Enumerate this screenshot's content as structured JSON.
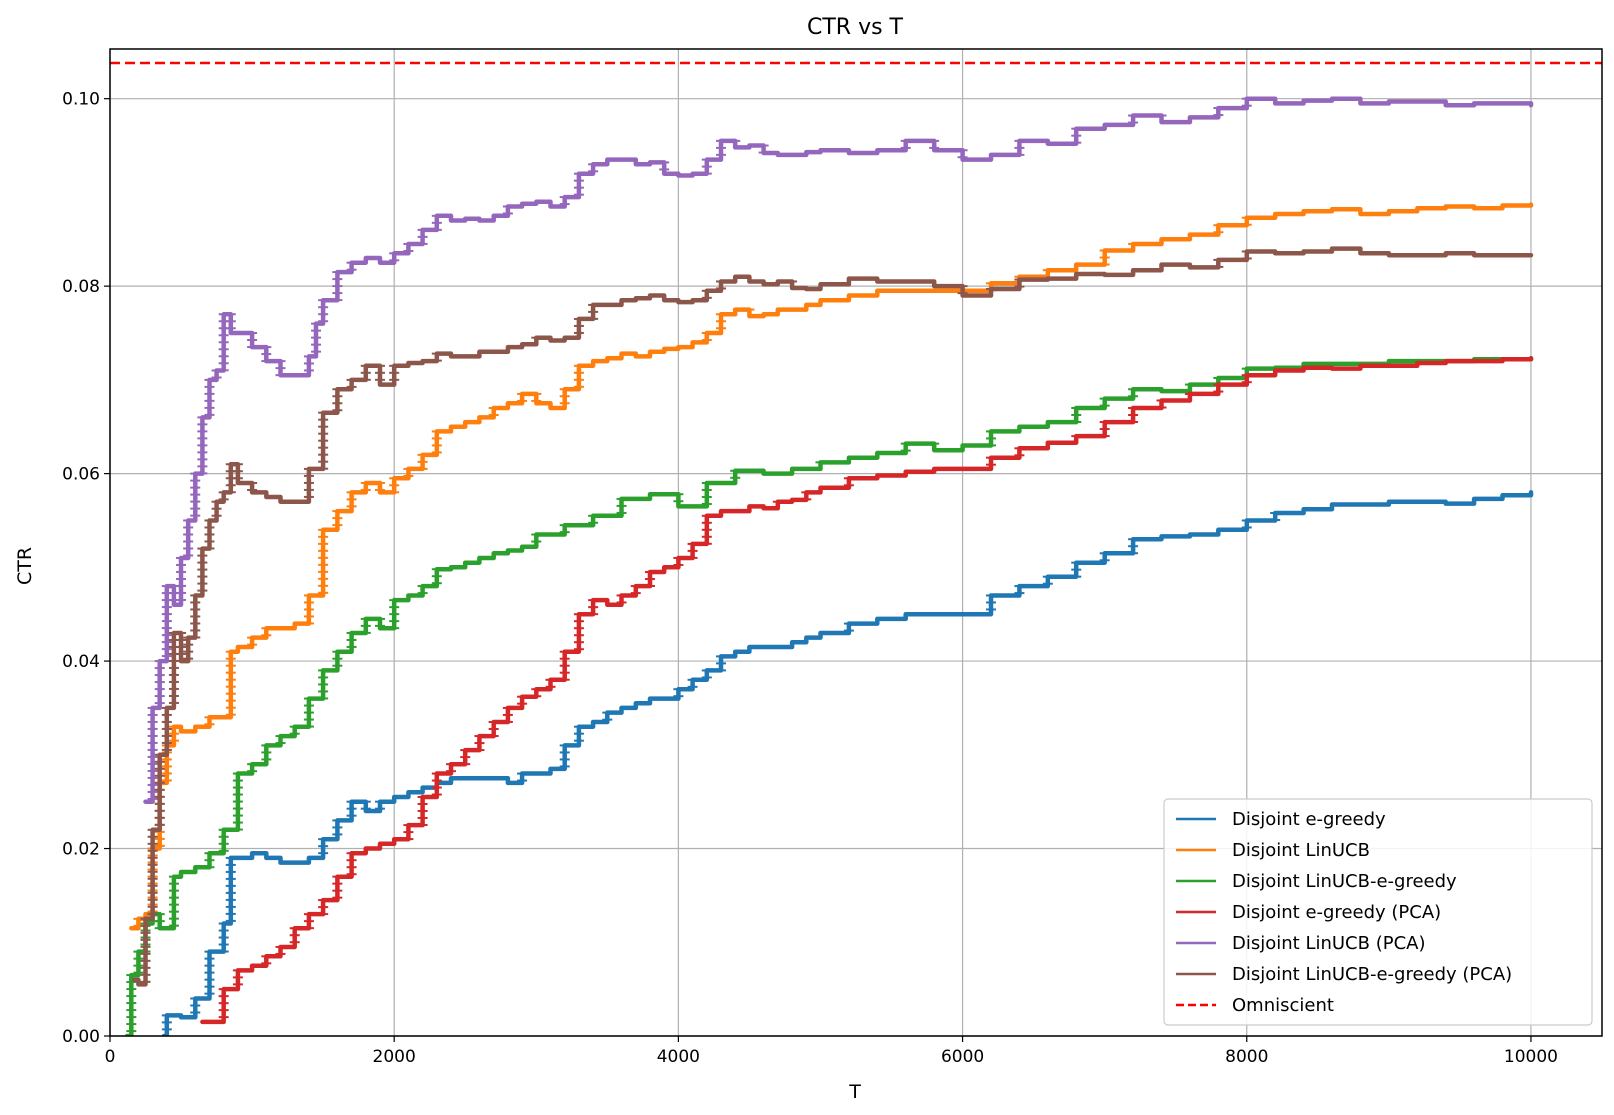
{
  "chart_data": {
    "type": "line",
    "title": "CTR vs T",
    "xlabel": "T",
    "ylabel": "CTR",
    "xlim": [
      0,
      10500
    ],
    "ylim": [
      0,
      0.1053
    ],
    "xticks": [
      0,
      2000,
      4000,
      6000,
      8000,
      10000
    ],
    "yticks": [
      0.0,
      0.02,
      0.04,
      0.06,
      0.08,
      0.1
    ],
    "xtick_labels": [
      "0",
      "2000",
      "4000",
      "6000",
      "8000",
      "10000"
    ],
    "ytick_labels": [
      "0.00",
      "0.02",
      "0.04",
      "0.06",
      "0.08",
      "0.10"
    ],
    "grid": true,
    "legend_position": "lower-right",
    "series": [
      {
        "name": "Disjoint e-greedy",
        "color": "#1f77b4",
        "dash": "solid",
        "x": [
          380,
          400,
          500,
          600,
          700,
          800,
          850,
          1000,
          1100,
          1200,
          1300,
          1400,
          1500,
          1600,
          1700,
          1800,
          1900,
          2000,
          2100,
          2200,
          2300,
          2400,
          2500,
          2600,
          2700,
          2800,
          2900,
          3000,
          3100,
          3200,
          3300,
          3400,
          3500,
          3600,
          3700,
          3800,
          3900,
          4000,
          4100,
          4200,
          4300,
          4400,
          4500,
          4600,
          4700,
          4800,
          4900,
          5000,
          5200,
          5400,
          5600,
          5800,
          6000,
          6200,
          6400,
          6600,
          6800,
          7000,
          7200,
          7400,
          7600,
          7800,
          8000,
          8200,
          8400,
          8600,
          8800,
          9000,
          9200,
          9400,
          9600,
          9800,
          10000
        ],
        "values": [
          0.0,
          0.0022,
          0.002,
          0.004,
          0.009,
          0.012,
          0.019,
          0.0195,
          0.019,
          0.0185,
          0.0185,
          0.019,
          0.021,
          0.023,
          0.025,
          0.024,
          0.025,
          0.0255,
          0.026,
          0.0265,
          0.027,
          0.0275,
          0.0275,
          0.0275,
          0.0275,
          0.027,
          0.028,
          0.028,
          0.0285,
          0.031,
          0.033,
          0.0335,
          0.0345,
          0.035,
          0.0355,
          0.036,
          0.036,
          0.037,
          0.038,
          0.039,
          0.0405,
          0.041,
          0.0415,
          0.0415,
          0.0415,
          0.042,
          0.0425,
          0.043,
          0.044,
          0.0445,
          0.045,
          0.045,
          0.045,
          0.047,
          0.048,
          0.049,
          0.0505,
          0.0515,
          0.053,
          0.0533,
          0.0535,
          0.054,
          0.055,
          0.0558,
          0.0562,
          0.0567,
          0.0567,
          0.057,
          0.057,
          0.0568,
          0.0573,
          0.0577,
          0.058
        ]
      },
      {
        "name": "Disjoint LinUCB",
        "color": "#ff7f0e",
        "dash": "solid",
        "x": [
          150,
          200,
          250,
          300,
          350,
          400,
          450,
          500,
          600,
          700,
          800,
          850,
          900,
          1000,
          1100,
          1200,
          1300,
          1400,
          1500,
          1600,
          1700,
          1800,
          1900,
          2000,
          2100,
          2200,
          2300,
          2400,
          2500,
          2600,
          2700,
          2800,
          2900,
          3000,
          3100,
          3200,
          3300,
          3400,
          3500,
          3600,
          3700,
          3800,
          3900,
          4000,
          4100,
          4200,
          4300,
          4400,
          4500,
          4600,
          4700,
          4800,
          4900,
          5000,
          5200,
          5400,
          5600,
          5800,
          6000,
          6200,
          6400,
          6600,
          6800,
          7000,
          7200,
          7400,
          7600,
          7800,
          8000,
          8200,
          8400,
          8600,
          8800,
          9000,
          9200,
          9400,
          9600,
          9800,
          10000
        ],
        "values": [
          0.0115,
          0.0125,
          0.013,
          0.02,
          0.027,
          0.031,
          0.033,
          0.0325,
          0.033,
          0.034,
          0.034,
          0.041,
          0.0415,
          0.0425,
          0.0435,
          0.0435,
          0.044,
          0.047,
          0.054,
          0.056,
          0.058,
          0.059,
          0.058,
          0.0595,
          0.0605,
          0.062,
          0.0645,
          0.065,
          0.0655,
          0.066,
          0.067,
          0.0675,
          0.0685,
          0.0675,
          0.067,
          0.069,
          0.0715,
          0.072,
          0.0723,
          0.0728,
          0.0725,
          0.073,
          0.0733,
          0.0735,
          0.074,
          0.075,
          0.077,
          0.0775,
          0.0768,
          0.077,
          0.0775,
          0.0775,
          0.078,
          0.0785,
          0.079,
          0.0795,
          0.0795,
          0.0795,
          0.0795,
          0.0803,
          0.081,
          0.0817,
          0.0823,
          0.0838,
          0.0845,
          0.085,
          0.0855,
          0.0865,
          0.0873,
          0.0877,
          0.088,
          0.0882,
          0.0877,
          0.088,
          0.0883,
          0.0885,
          0.0883,
          0.0886,
          0.0887
        ]
      },
      {
        "name": "Disjoint LinUCB-e-greedy",
        "color": "#2ca02c",
        "dash": "solid",
        "x": [
          120,
          150,
          200,
          250,
          300,
          350,
          400,
          450,
          500,
          600,
          700,
          800,
          900,
          1000,
          1100,
          1200,
          1300,
          1400,
          1500,
          1600,
          1700,
          1800,
          1900,
          2000,
          2100,
          2200,
          2300,
          2400,
          2500,
          2600,
          2700,
          2800,
          2900,
          3000,
          3200,
          3400,
          3600,
          3800,
          4000,
          4200,
          4400,
          4600,
          4800,
          5000,
          5200,
          5400,
          5600,
          5800,
          6000,
          6200,
          6400,
          6600,
          6800,
          7000,
          7200,
          7400,
          7600,
          7800,
          8000,
          8200,
          8400,
          8600,
          8800,
          9000,
          9200,
          9400,
          9600,
          9800,
          10000
        ],
        "values": [
          0.0,
          0.0065,
          0.009,
          0.012,
          0.013,
          0.0115,
          0.0115,
          0.017,
          0.0175,
          0.018,
          0.0195,
          0.022,
          0.028,
          0.029,
          0.031,
          0.032,
          0.033,
          0.036,
          0.039,
          0.041,
          0.043,
          0.0445,
          0.0435,
          0.0465,
          0.047,
          0.048,
          0.0498,
          0.05,
          0.0505,
          0.051,
          0.0515,
          0.0518,
          0.0522,
          0.0535,
          0.0545,
          0.0555,
          0.0573,
          0.0578,
          0.0565,
          0.059,
          0.0603,
          0.06,
          0.0605,
          0.0612,
          0.0617,
          0.0622,
          0.0632,
          0.0625,
          0.063,
          0.0645,
          0.065,
          0.0655,
          0.067,
          0.068,
          0.069,
          0.0688,
          0.0695,
          0.0702,
          0.0712,
          0.0713,
          0.0717,
          0.0717,
          0.0717,
          0.072,
          0.072,
          0.072,
          0.0722,
          0.0722,
          0.0723
        ]
      },
      {
        "name": "Disjoint e-greedy (PCA)",
        "color": "#d62728",
        "dash": "solid",
        "x": [
          650,
          700,
          800,
          900,
          1000,
          1100,
          1200,
          1300,
          1400,
          1500,
          1600,
          1700,
          1800,
          1900,
          2000,
          2100,
          2200,
          2300,
          2400,
          2500,
          2600,
          2700,
          2800,
          2900,
          3000,
          3100,
          3200,
          3300,
          3400,
          3500,
          3600,
          3700,
          3800,
          3900,
          4000,
          4100,
          4200,
          4300,
          4400,
          4500,
          4600,
          4700,
          4800,
          4900,
          5000,
          5200,
          5400,
          5600,
          5800,
          6000,
          6200,
          6400,
          6600,
          6800,
          7000,
          7200,
          7400,
          7600,
          7800,
          8000,
          8200,
          8400,
          8600,
          8800,
          9000,
          9200,
          9400,
          9600,
          9800,
          10000
        ],
        "values": [
          0.0015,
          0.0015,
          0.005,
          0.007,
          0.0075,
          0.0085,
          0.0095,
          0.0115,
          0.013,
          0.0145,
          0.017,
          0.0195,
          0.02,
          0.0205,
          0.021,
          0.0225,
          0.0255,
          0.028,
          0.029,
          0.0305,
          0.032,
          0.0335,
          0.035,
          0.0362,
          0.037,
          0.038,
          0.041,
          0.045,
          0.0465,
          0.046,
          0.047,
          0.048,
          0.0495,
          0.05,
          0.051,
          0.0525,
          0.0555,
          0.056,
          0.056,
          0.0565,
          0.0563,
          0.057,
          0.0572,
          0.058,
          0.0585,
          0.0595,
          0.0598,
          0.0602,
          0.0605,
          0.0605,
          0.0617,
          0.0627,
          0.0633,
          0.064,
          0.0655,
          0.067,
          0.0678,
          0.0685,
          0.0695,
          0.0705,
          0.071,
          0.0713,
          0.0712,
          0.0715,
          0.0715,
          0.0718,
          0.072,
          0.072,
          0.0722,
          0.0723
        ]
      },
      {
        "name": "Disjoint LinUCB (PCA)",
        "color": "#9467bd",
        "dash": "solid",
        "x": [
          250,
          300,
          350,
          400,
          450,
          500,
          550,
          600,
          650,
          700,
          750,
          800,
          850,
          900,
          1000,
          1100,
          1200,
          1300,
          1400,
          1450,
          1500,
          1600,
          1700,
          1800,
          1900,
          2000,
          2100,
          2200,
          2300,
          2400,
          2500,
          2600,
          2700,
          2800,
          2900,
          3000,
          3100,
          3200,
          3300,
          3400,
          3500,
          3600,
          3700,
          3800,
          3900,
          4000,
          4100,
          4200,
          4300,
          4400,
          4500,
          4600,
          4700,
          4800,
          4900,
          5000,
          5200,
          5400,
          5600,
          5800,
          6000,
          6200,
          6400,
          6600,
          6800,
          7000,
          7200,
          7400,
          7600,
          7800,
          8000,
          8200,
          8400,
          8600,
          8800,
          9000,
          9200,
          9400,
          9600,
          9800,
          10000
        ],
        "values": [
          0.025,
          0.035,
          0.04,
          0.048,
          0.046,
          0.051,
          0.055,
          0.06,
          0.066,
          0.07,
          0.071,
          0.077,
          0.075,
          0.075,
          0.0735,
          0.072,
          0.0705,
          0.0705,
          0.0725,
          0.076,
          0.0785,
          0.0815,
          0.0825,
          0.083,
          0.0825,
          0.0835,
          0.0845,
          0.086,
          0.0875,
          0.087,
          0.0872,
          0.087,
          0.0875,
          0.0885,
          0.0888,
          0.089,
          0.0885,
          0.0895,
          0.092,
          0.093,
          0.0935,
          0.0935,
          0.093,
          0.0932,
          0.092,
          0.0918,
          0.092,
          0.0935,
          0.0955,
          0.0948,
          0.095,
          0.0942,
          0.094,
          0.094,
          0.0943,
          0.0945,
          0.0942,
          0.0945,
          0.0955,
          0.0945,
          0.0935,
          0.094,
          0.0955,
          0.0952,
          0.0968,
          0.0972,
          0.0982,
          0.0975,
          0.098,
          0.099,
          0.1,
          0.0995,
          0.0998,
          0.1,
          0.0995,
          0.0997,
          0.0997,
          0.0993,
          0.0995,
          0.0995,
          0.0993
        ]
      },
      {
        "name": "Disjoint LinUCB-e-greedy (PCA)",
        "color": "#8c564b",
        "dash": "solid",
        "x": [
          170,
          200,
          250,
          300,
          350,
          400,
          450,
          500,
          550,
          600,
          650,
          700,
          750,
          800,
          850,
          900,
          1000,
          1100,
          1200,
          1300,
          1400,
          1500,
          1600,
          1700,
          1800,
          1900,
          2000,
          2100,
          2200,
          2300,
          2400,
          2500,
          2600,
          2700,
          2800,
          2900,
          3000,
          3100,
          3200,
          3300,
          3400,
          3500,
          3600,
          3700,
          3800,
          3900,
          4000,
          4100,
          4200,
          4300,
          4400,
          4500,
          4600,
          4700,
          4800,
          4900,
          5000,
          5200,
          5400,
          5600,
          5800,
          6000,
          6200,
          6400,
          6600,
          6800,
          7000,
          7200,
          7400,
          7600,
          7800,
          8000,
          8200,
          8400,
          8600,
          8800,
          9000,
          9200,
          9400,
          9600,
          9800,
          10000
        ],
        "values": [
          0.006,
          0.0055,
          0.0125,
          0.022,
          0.03,
          0.035,
          0.043,
          0.04,
          0.0425,
          0.047,
          0.052,
          0.055,
          0.057,
          0.058,
          0.061,
          0.059,
          0.058,
          0.0575,
          0.057,
          0.057,
          0.0605,
          0.0665,
          0.069,
          0.07,
          0.0715,
          0.0695,
          0.0715,
          0.0718,
          0.072,
          0.0728,
          0.0725,
          0.0725,
          0.073,
          0.073,
          0.0735,
          0.0738,
          0.0745,
          0.0742,
          0.0745,
          0.0765,
          0.078,
          0.078,
          0.0785,
          0.0787,
          0.079,
          0.0785,
          0.0783,
          0.0785,
          0.0795,
          0.0805,
          0.081,
          0.0805,
          0.0802,
          0.0805,
          0.0798,
          0.0797,
          0.0802,
          0.0808,
          0.0805,
          0.0805,
          0.08,
          0.079,
          0.0797,
          0.0807,
          0.0808,
          0.0813,
          0.0812,
          0.0817,
          0.0823,
          0.082,
          0.0828,
          0.0837,
          0.0835,
          0.0837,
          0.084,
          0.0835,
          0.0833,
          0.0833,
          0.0835,
          0.0833,
          0.0833,
          0.0833
        ]
      },
      {
        "name": "Omniscient",
        "color": "#ff0000",
        "dash": "dashed",
        "hline": 0.1038
      }
    ]
  }
}
